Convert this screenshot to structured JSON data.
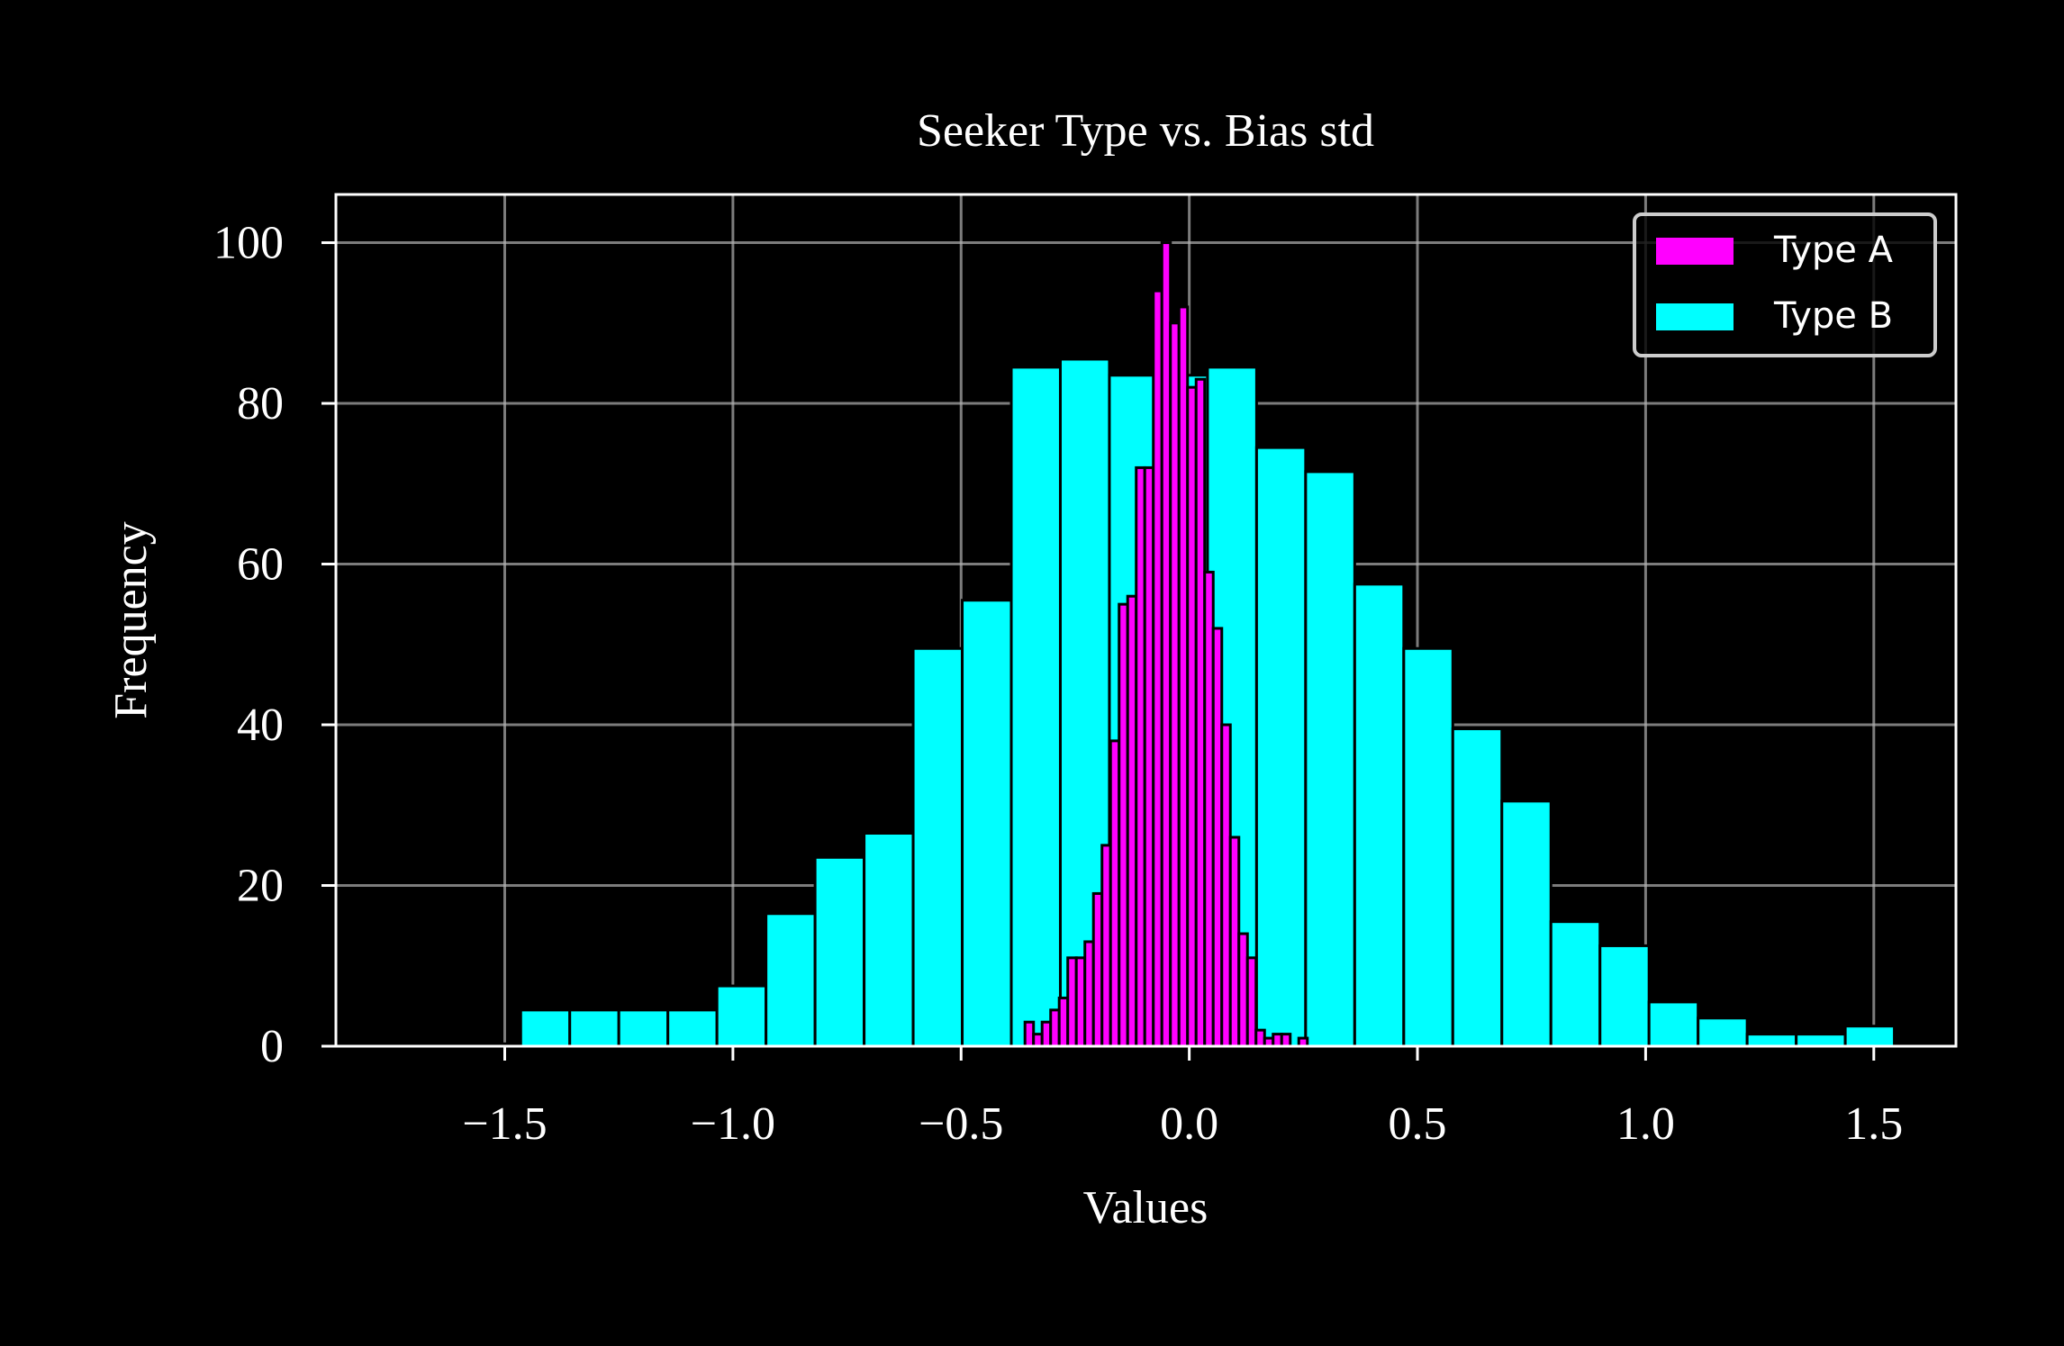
{
  "chart_data": {
    "type": "bar",
    "title": "Seeker Type vs. Bias std",
    "xlabel": "Values",
    "ylabel": "Frequency",
    "xlim": [
      -1.87,
      1.68
    ],
    "ylim": [
      0,
      106
    ],
    "xticks": [
      -1.5,
      -1.0,
      -0.5,
      0.0,
      0.5,
      1.0,
      1.5
    ],
    "xtick_labels": [
      "−1.5",
      "−1.0",
      "−0.5",
      "0.0",
      "0.5",
      "1.0",
      "1.5"
    ],
    "yticks": [
      0,
      20,
      40,
      60,
      80,
      100
    ],
    "ytick_labels": [
      "0",
      "20",
      "40",
      "60",
      "80",
      "100"
    ],
    "grid": true,
    "legend_position": "top-right",
    "background": "#000000",
    "series": [
      {
        "name": "Type B",
        "color": "#00ffff",
        "bin_start": -1.68,
        "bin_width": 0.1075,
        "values": [
          0.3,
          0.3,
          4.5,
          4.5,
          4.5,
          4.5,
          7.5,
          16.5,
          23.5,
          26.5,
          49.5,
          55.5,
          84.5,
          85.5,
          83.5,
          83.5,
          84.5,
          74.5,
          71.5,
          57.5,
          49.5,
          39.5,
          30.5,
          15.5,
          12.5,
          5.5,
          3.5,
          1.5,
          1.5,
          2.5
        ]
      },
      {
        "name": "Type A",
        "color": "#ff00ff",
        "bin_start": -0.36,
        "bin_width": 0.01875,
        "values": [
          3,
          1.5,
          3,
          4.5,
          6,
          11,
          11,
          13,
          19,
          25,
          38,
          55,
          56,
          72,
          72,
          94,
          100,
          90,
          92,
          82,
          83,
          59,
          52,
          40,
          26,
          14,
          11,
          2,
          1,
          1.5,
          1.5,
          0,
          1
        ]
      }
    ]
  }
}
